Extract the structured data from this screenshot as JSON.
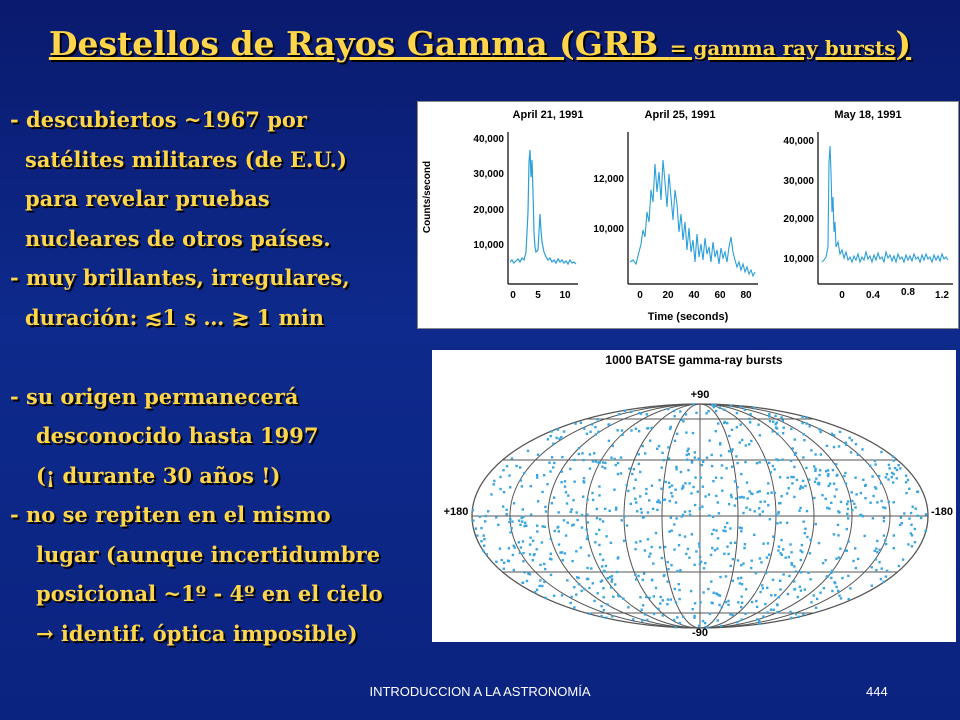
{
  "title": {
    "main": "Destellos de Rayos Gamma (GRB ",
    "small": "= gamma ray bursts",
    "close": ")"
  },
  "bullets": [
    "- descubiertos ~1967 por",
    "satélites militares (de E.U.)",
    "para revelar pruebas",
    "nucleares de otros países.",
    "- muy brillantes, irregulares,",
    "duración:  ≲1 s … ≳ 1 min",
    "",
    "- su origen permanecerá",
    "desconocido hasta 1997",
    "(¡ durante 30 años !)",
    "- no se repiten en el mismo",
    "lugar (aunque incertidumbre",
    "posicional ~1º - 4º en el cielo",
    "→ identif. óptica imposible)"
  ],
  "light_curves": {
    "ylabel": "Counts/second",
    "xlabel": "Time (seconds)",
    "panels": [
      {
        "date": "April 21, 1991",
        "yticks": [
          "40,000",
          "30,000",
          "20,000",
          "10,000"
        ],
        "xticks": [
          "0",
          "5",
          "10"
        ]
      },
      {
        "date": "April 25, 1991",
        "yticks": [
          "12,000",
          "10,000"
        ],
        "xticks": [
          "0",
          "20",
          "40",
          "60",
          "80"
        ]
      },
      {
        "date": "May 18, 1991",
        "yticks": [
          "40,000",
          "30,000",
          "20,000",
          "10,000"
        ],
        "xticks": [
          "0",
          "0.4",
          "0.8",
          "1.2"
        ]
      }
    ]
  },
  "sky_map": {
    "title": "1000 BATSE gamma-ray bursts",
    "labels": {
      "top": "+90",
      "bottom": "-90",
      "left": "+180",
      "right": "-180"
    },
    "n_points": 1000
  },
  "colors": {
    "text": "#ffd54a",
    "curve": "#2a9fd8",
    "dots": "#3aa6e0"
  },
  "footer": {
    "course": "INTRODUCCION A LA ASTRONOMÍA",
    "page": "444"
  }
}
